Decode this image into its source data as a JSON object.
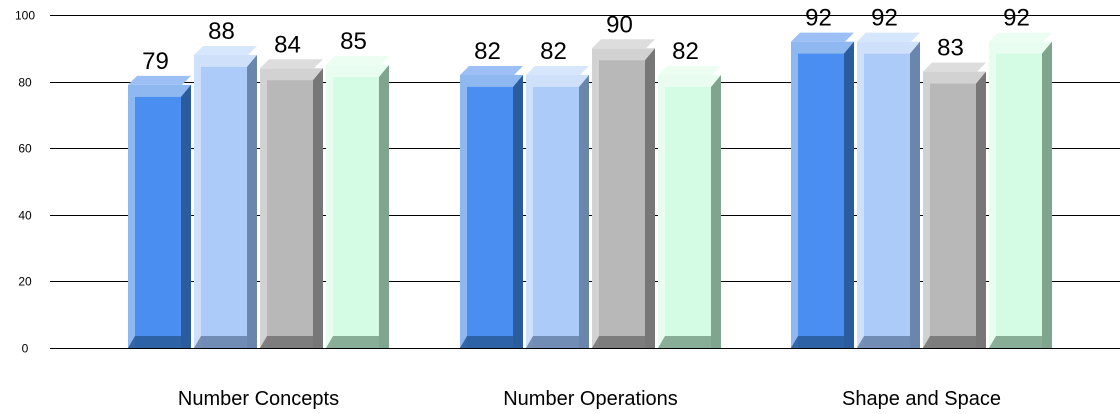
{
  "chart_data": {
    "type": "bar",
    "categories": [
      "Number Concepts",
      "Number Operations",
      "Shape and Space"
    ],
    "series": [
      {
        "values": [
          79,
          82,
          92
        ],
        "colors": {
          "front": "#4a8ef2",
          "top": "#9cc0f5",
          "side": "#2b5d9e",
          "frame": "#8fb8f0"
        }
      },
      {
        "values": [
          88,
          82,
          92
        ],
        "colors": {
          "front": "#adcbf9",
          "top": "#d6e6fc",
          "side": "#6b86ad",
          "frame": "#cfe0fa"
        }
      },
      {
        "values": [
          84,
          90,
          83
        ],
        "colors": {
          "front": "#b8b8b8",
          "top": "#dddddd",
          "side": "#777777",
          "frame": "#d2d2d2"
        }
      },
      {
        "values": [
          85,
          82,
          92
        ],
        "colors": {
          "front": "#d4fbe3",
          "top": "#ecfdf2",
          "side": "#7fa58e",
          "frame": "#e8fdf0"
        }
      }
    ],
    "y_ticks": [
      "0",
      "20",
      "40",
      "60",
      "80",
      "100"
    ],
    "ylim": [
      0,
      100
    ],
    "grid": true,
    "title": "",
    "xlabel": "",
    "ylabel": ""
  }
}
